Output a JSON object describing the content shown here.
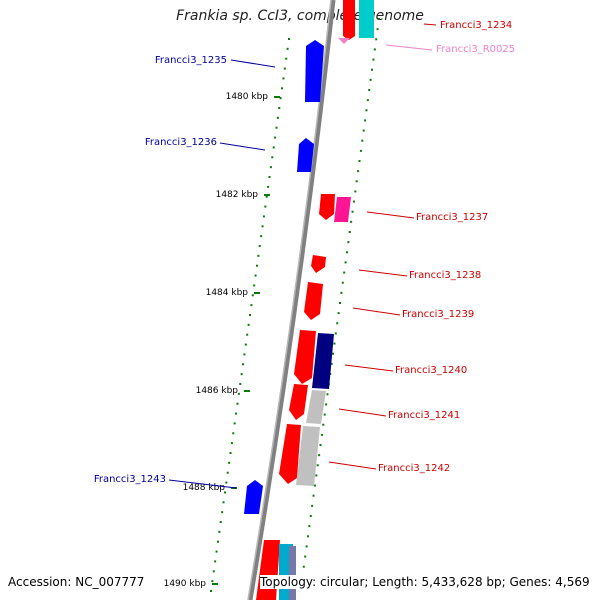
{
  "title": "Frankia sp. CcI3, complete genome",
  "accession_text": "Accession: NC_007777",
  "topology_text": "Topology: circular; Length: 5,433,628 bp; Genes: 4,569",
  "colors": {
    "forward_gene": "#0000ff",
    "forward_gene_dark": "#000080",
    "reverse_gene": "#ff0000",
    "reverse_label": "#cc0000",
    "forward_label": "#000099",
    "rna_gene": "#ff1493",
    "rna_label": "#ee82c8",
    "pseudo_gene": "#c0c0c0",
    "tick": "#0a7a0a",
    "backbone": "#808080"
  },
  "scale_labels": [
    {
      "text": "1480 kbp"
    },
    {
      "text": "1482 kbp"
    },
    {
      "text": "1484 kbp"
    },
    {
      "text": "1486 kbp"
    },
    {
      "text": "1488 kbp"
    },
    {
      "text": "1490 kbp"
    }
  ],
  "gene_labels": [
    {
      "text": "Francci3_1234",
      "strand": "reverse"
    },
    {
      "text": "Francci3_R0025",
      "strand": "rna"
    },
    {
      "text": "Francci3_1235",
      "strand": "forward"
    },
    {
      "text": "Francci3_1236",
      "strand": "forward"
    },
    {
      "text": "Francci3_1237",
      "strand": "reverse"
    },
    {
      "text": "Francci3_1238",
      "strand": "reverse"
    },
    {
      "text": "Francci3_1239",
      "strand": "reverse"
    },
    {
      "text": "Francci3_1240",
      "strand": "reverse"
    },
    {
      "text": "Francci3_1241",
      "strand": "reverse"
    },
    {
      "text": "Francci3_1243",
      "strand": "forward"
    },
    {
      "text": "Francci3_1242",
      "strand": "reverse"
    }
  ]
}
